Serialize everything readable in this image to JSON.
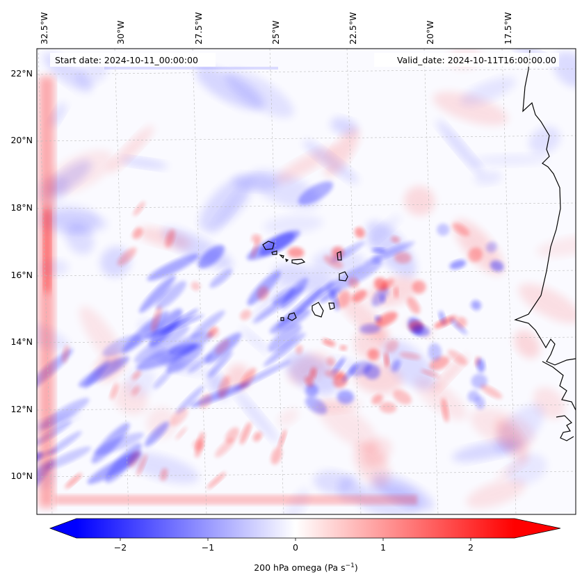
{
  "map": {
    "start_date_label": "Start date: 2024-10-11_00:00:00",
    "valid_date_label": "Valid_date: 2024-10-11T16:00:00.00",
    "lon_labels": [
      "32.5°W",
      "30°W",
      "27.5°W",
      "25°W",
      "22.5°W",
      "20°W",
      "17.5°W"
    ],
    "lat_labels": [
      "22°N",
      "20°N",
      "18°N",
      "16°N",
      "14°N",
      "12°N",
      "10°N"
    ],
    "field": "200 hPa omega",
    "colors": {
      "negative": "#0000ff",
      "zero": "#ffffff",
      "positive": "#ff0000",
      "coast": "#000000"
    }
  },
  "colorbar": {
    "label_text": "200 hPa omega (Pa s",
    "label_exp": "−1",
    "label_close": ")",
    "ticks": [
      "−2",
      "−1",
      "0",
      "1",
      "2"
    ],
    "tick_values": [
      -2,
      -1,
      0,
      1,
      2
    ],
    "range": [
      -2.5,
      2.5
    ],
    "extend": "both"
  }
}
